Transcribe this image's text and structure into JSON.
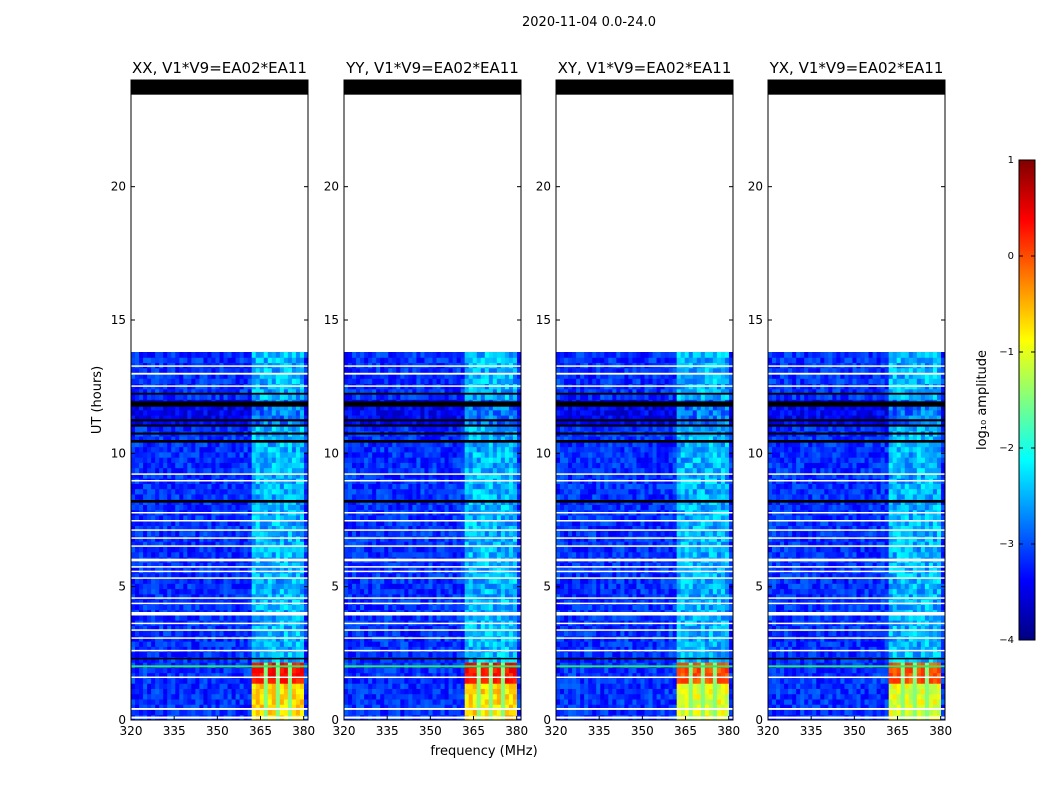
{
  "chart_data": {
    "type": "heatmap",
    "title": "2020-11-04 0.0-24.0",
    "xlabel": "frequency (MHz)",
    "ylabel": "UT (hours)",
    "xlim": [
      320,
      381.5
    ],
    "ylim": [
      0,
      24
    ],
    "x_ticks": [
      320,
      335,
      350,
      365,
      380
    ],
    "y_ticks": [
      0,
      5,
      10,
      15,
      20
    ],
    "no_data_above_hours": 13.8,
    "flagged_top_band_hours": [
      23.45,
      24
    ],
    "strong_rfi": {
      "freq_start": 361,
      "freq_end": 378.5,
      "time_end": 2.0,
      "channel_gaps": [
        366.5,
        371.5,
        375.5
      ]
    },
    "panels": [
      {
        "label": "XX, V1*V9=EA02*EA11"
      },
      {
        "label": "YY, V1*V9=EA02*EA11"
      },
      {
        "label": "XY, V1*V9=EA02*EA11"
      },
      {
        "label": "YX, V1*V9=EA02*EA11"
      }
    ],
    "colorbar": {
      "label": "log₁₀ amplitude",
      "range": [
        -4,
        1
      ],
      "ticks": [
        -4,
        -3,
        -2,
        -1,
        0,
        1
      ],
      "tick_labels": [
        "−4",
        "−3",
        "−2",
        "−1",
        "0",
        "1"
      ],
      "colormap": "jet",
      "stops": [
        "#000080",
        "#0000ff",
        "#0080ff",
        "#00ffff",
        "#80ff80",
        "#ffff00",
        "#ff8000",
        "#ff0000",
        "#800000"
      ]
    }
  }
}
